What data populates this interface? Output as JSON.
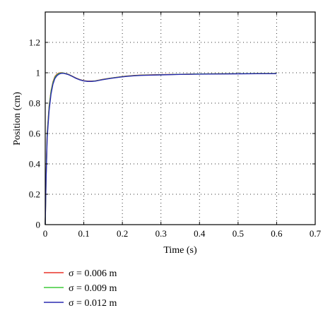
{
  "chart_data": {
    "type": "line",
    "title": "",
    "xlabel": "Time (s)",
    "ylabel": "Position (cm)",
    "xlim": [
      0,
      0.7
    ],
    "ylim": [
      0,
      1.4
    ],
    "xticks": [
      "0",
      "0.1",
      "0.2",
      "0.3",
      "0.4",
      "0.5",
      "0.6",
      "0.7"
    ],
    "yticks": [
      "0",
      "0.2",
      "0.4",
      "0.6",
      "0.8",
      "1",
      "1.2"
    ],
    "grid": true,
    "legend_position": "bottom-left",
    "series": [
      {
        "name": "σ = 0.006 m",
        "color": "#e8322a",
        "x": [
          0,
          0.002,
          0.005,
          0.01,
          0.015,
          0.02,
          0.025,
          0.03,
          0.035,
          0.04,
          0.045,
          0.05,
          0.06,
          0.07,
          0.08,
          0.09,
          0.1,
          0.11,
          0.12,
          0.13,
          0.14,
          0.15,
          0.17,
          0.19,
          0.21,
          0.23,
          0.25,
          0.3,
          0.35,
          0.4,
          0.45,
          0.5,
          0.55,
          0.6
        ],
        "y": [
          0,
          0.3,
          0.6,
          0.78,
          0.88,
          0.94,
          0.975,
          0.99,
          0.998,
          1.0,
          1.0,
          0.997,
          0.99,
          0.978,
          0.965,
          0.955,
          0.948,
          0.945,
          0.945,
          0.947,
          0.952,
          0.957,
          0.965,
          0.972,
          0.978,
          0.982,
          0.985,
          0.988,
          0.99,
          0.992,
          0.993,
          0.994,
          0.995,
          0.995
        ]
      },
      {
        "name": "σ = 0.009 m",
        "color": "#3ecc3a",
        "x": [
          0,
          0.002,
          0.005,
          0.01,
          0.015,
          0.02,
          0.025,
          0.03,
          0.035,
          0.04,
          0.045,
          0.05,
          0.06,
          0.07,
          0.08,
          0.09,
          0.1,
          0.11,
          0.12,
          0.13,
          0.14,
          0.15,
          0.17,
          0.19,
          0.21,
          0.23,
          0.25,
          0.3,
          0.35,
          0.4,
          0.45,
          0.5,
          0.55,
          0.6
        ],
        "y": [
          0,
          0.29,
          0.59,
          0.77,
          0.875,
          0.935,
          0.97,
          0.986,
          0.995,
          0.998,
          0.999,
          0.996,
          0.989,
          0.977,
          0.964,
          0.954,
          0.947,
          0.944,
          0.944,
          0.946,
          0.951,
          0.956,
          0.964,
          0.971,
          0.977,
          0.981,
          0.984,
          0.987,
          0.99,
          0.992,
          0.993,
          0.994,
          0.995,
          0.995
        ]
      },
      {
        "name": "σ = 0.012 m",
        "color": "#2a2ab0",
        "x": [
          0,
          0.002,
          0.005,
          0.01,
          0.015,
          0.02,
          0.025,
          0.03,
          0.035,
          0.04,
          0.045,
          0.05,
          0.06,
          0.07,
          0.08,
          0.09,
          0.1,
          0.11,
          0.12,
          0.13,
          0.14,
          0.15,
          0.17,
          0.19,
          0.21,
          0.23,
          0.25,
          0.3,
          0.35,
          0.4,
          0.45,
          0.5,
          0.55,
          0.6
        ],
        "y": [
          0,
          0.28,
          0.57,
          0.75,
          0.86,
          0.925,
          0.962,
          0.98,
          0.99,
          0.995,
          0.997,
          0.995,
          0.988,
          0.976,
          0.963,
          0.953,
          0.946,
          0.943,
          0.943,
          0.945,
          0.95,
          0.955,
          0.963,
          0.97,
          0.976,
          0.98,
          0.983,
          0.986,
          0.989,
          0.991,
          0.992,
          0.993,
          0.994,
          0.994
        ]
      }
    ]
  }
}
